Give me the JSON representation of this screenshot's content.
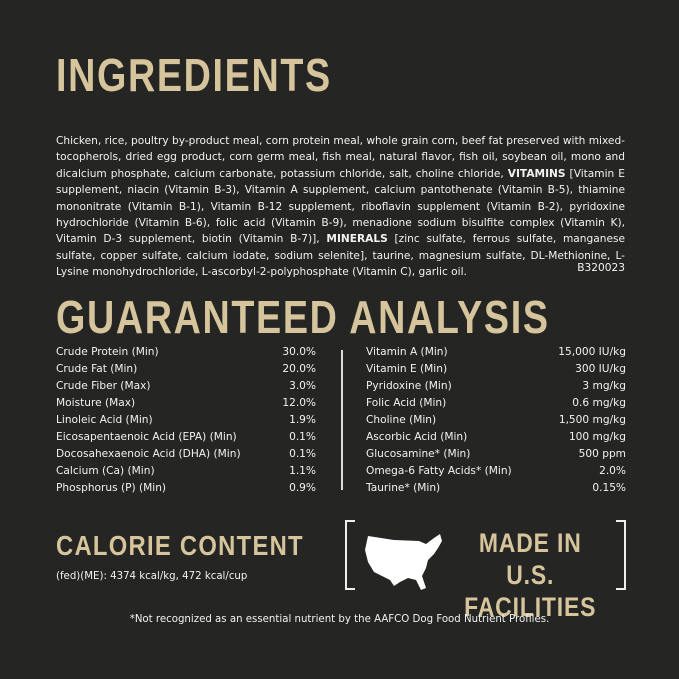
{
  "ingredients": {
    "title": "INGREDIENTS",
    "text_1": "Chicken, rice, poultry by-product meal, corn protein meal, whole grain corn, beef fat preserved with mixed-tocopherols, dried egg product, corn germ meal, fish meal, natural flavor, fish oil, soybean oil, mono and dicalcium phosphate, calcium carbonate, potassium chloride, salt, choline chloride, ",
    "vitamins_label": "VITAMINS",
    "text_2": " [Vitamin E supplement, niacin (Vitamin B-3), Vitamin A supplement, calcium pantothenate (Vitamin B-5), thiamine mononitrate (Vitamin B-1), Vitamin B-12 supplement, riboflavin supplement (Vitamin B-2), pyridoxine hydrochloride (Vitamin B-6), folic acid (Vitamin B-9), menadione sodium bisulfite complex (Vitamin K), Vitamin D-3 supplement, biotin (Vitamin B-7)], ",
    "minerals_label": "MINERALS",
    "text_3": " [zinc sulfate, ferrous sulfate, manganese sulfate, copper sulfate, calcium iodate, sodium selenite], taurine, magnesium sulfate, DL-Methionine, L-Lysine monohydrochloride, L-ascorbyl-2-polyphosphate (Vitamin C), garlic oil.",
    "code": "B320023"
  },
  "analysis": {
    "title": "GUARANTEED ANALYSIS",
    "left": [
      {
        "label": "Crude Protein (Min)",
        "value": "30.0%"
      },
      {
        "label": "Crude Fat (Min)",
        "value": "20.0%"
      },
      {
        "label": "Crude Fiber (Max)",
        "value": "3.0%"
      },
      {
        "label": "Moisture (Max)",
        "value": "12.0%"
      },
      {
        "label": "Linoleic Acid (Min)",
        "value": "1.9%"
      },
      {
        "label": "Eicosapentaenoic Acid (EPA) (Min)",
        "value": "0.1%"
      },
      {
        "label": "Docosahexaenoic Acid (DHA) (Min)",
        "value": "0.1%"
      },
      {
        "label": "Calcium (Ca) (Min)",
        "value": "1.1%"
      },
      {
        "label": "Phosphorus (P) (Min)",
        "value": "0.9%"
      }
    ],
    "right": [
      {
        "label": "Vitamin A (Min)",
        "value": "15,000 IU/kg"
      },
      {
        "label": "Vitamin E (Min)",
        "value": "300 IU/kg"
      },
      {
        "label": "Pyridoxine (Min)",
        "value": "3 mg/kg"
      },
      {
        "label": "Folic Acid (Min)",
        "value": "0.6 mg/kg"
      },
      {
        "label": "Choline (Min)",
        "value": "1,500 mg/kg"
      },
      {
        "label": "Ascorbic Acid (Min)",
        "value": "100 mg/kg"
      },
      {
        "label": "Glucosamine* (Min)",
        "value": "500 ppm"
      },
      {
        "label": "Omega-6 Fatty Acids* (Min)",
        "value": "2.0%"
      },
      {
        "label": "Taurine* (Min)",
        "value": "0.15%"
      }
    ]
  },
  "calorie": {
    "title": "CALORIE CONTENT",
    "text": "(fed)(ME): 4374 kcal/kg, 472 kcal/cup"
  },
  "badge": {
    "line1": "MADE IN U.S.",
    "line2": "FACILITIES",
    "icon": "usa-map-icon"
  },
  "footnote": "*Not recognized as an essential nutrient by the AAFCO Dog Food Nutrient Profiles.",
  "colors": {
    "background": "#252523",
    "gold": "#d6c59c",
    "text": "#f2f2f0"
  }
}
